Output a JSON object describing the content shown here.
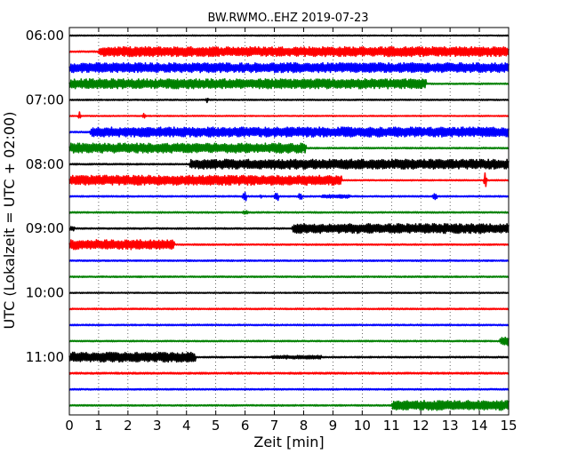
{
  "chart_data": {
    "type": "line",
    "title": "BW.RWMO..EHZ 2019-07-23",
    "xlabel": "Zeit  [min]",
    "ylabel": "UTC (Lokalzeit = UTC + 02:00)",
    "xlim": [
      0,
      15
    ],
    "x_ticks": [
      "0",
      "1",
      "2",
      "3",
      "4",
      "5",
      "6",
      "7",
      "8",
      "9",
      "10",
      "11",
      "12",
      "13",
      "14",
      "15"
    ],
    "y_ticks": [
      {
        "label": "06:00",
        "row": 0
      },
      {
        "label": "07:00",
        "row": 4
      },
      {
        "label": "08:00",
        "row": 8
      },
      {
        "label": "09:00",
        "row": 12
      },
      {
        "label": "10:00",
        "row": 16
      },
      {
        "label": "11:00",
        "row": 20
      }
    ],
    "grid": true,
    "colors": [
      "#000000",
      "#ff0000",
      "#0000ff",
      "#008000"
    ],
    "traces": [
      {
        "row": 0,
        "start_utc": "06:00",
        "color": "#000000",
        "base": 0.6,
        "segments": []
      },
      {
        "row": 1,
        "start_utc": "06:15",
        "color": "#ff0000",
        "base": 0.8,
        "segments": [
          [
            1.0,
            15,
            5.5
          ]
        ]
      },
      {
        "row": 2,
        "start_utc": "06:30",
        "color": "#0000ff",
        "base": 0.8,
        "segments": [
          [
            0,
            15,
            5.5
          ]
        ]
      },
      {
        "row": 3,
        "start_utc": "06:45",
        "color": "#008000",
        "base": 0.8,
        "segments": [
          [
            0,
            12.2,
            5.5
          ]
        ]
      },
      {
        "row": 4,
        "start_utc": "07:00",
        "color": "#000000",
        "base": 0.7,
        "segments": [],
        "spikes": [
          [
            4.7,
            4
          ]
        ]
      },
      {
        "row": 5,
        "start_utc": "07:15",
        "color": "#ff0000",
        "base": 0.6,
        "segments": [],
        "spikes": [
          [
            0.35,
            5
          ],
          [
            2.55,
            5
          ]
        ]
      },
      {
        "row": 6,
        "start_utc": "07:30",
        "color": "#0000ff",
        "base": 0.8,
        "segments": [
          [
            0.7,
            15,
            5.5
          ]
        ]
      },
      {
        "row": 7,
        "start_utc": "07:45",
        "color": "#008000",
        "base": 0.8,
        "segments": [
          [
            0,
            8.1,
            5.5
          ]
        ]
      },
      {
        "row": 8,
        "start_utc": "08:00",
        "color": "#000000",
        "base": 0.8,
        "segments": [
          [
            4.1,
            15,
            5.5
          ]
        ]
      },
      {
        "row": 9,
        "start_utc": "08:15",
        "color": "#ff0000",
        "base": 0.7,
        "segments": [
          [
            0,
            9.3,
            5.5
          ]
        ],
        "spikes": [
          [
            14.2,
            14
          ]
        ]
      },
      {
        "row": 10,
        "start_utc": "08:30",
        "color": "#0000ff",
        "base": 0.8,
        "segments": [
          [
            5.9,
            6.05,
            5
          ],
          [
            6.5,
            6.55,
            2.5
          ],
          [
            7.0,
            7.15,
            5
          ],
          [
            7.8,
            7.95,
            4
          ],
          [
            8.6,
            9.6,
            2
          ],
          [
            12.4,
            12.55,
            3.5
          ]
        ]
      },
      {
        "row": 11,
        "start_utc": "08:45",
        "color": "#008000",
        "base": 0.8,
        "segments": [
          [
            5.9,
            6.1,
            2
          ]
        ]
      },
      {
        "row": 12,
        "start_utc": "09:00",
        "color": "#000000",
        "base": 0.8,
        "segments": [
          [
            0,
            0.2,
            2.5
          ],
          [
            7.6,
            15,
            5.5
          ]
        ]
      },
      {
        "row": 13,
        "start_utc": "09:15",
        "color": "#ff0000",
        "base": 0.8,
        "segments": [
          [
            0,
            3.6,
            5.5
          ]
        ]
      },
      {
        "row": 14,
        "start_utc": "09:30",
        "color": "#0000ff",
        "base": 0.8,
        "segments": []
      },
      {
        "row": 15,
        "start_utc": "09:45",
        "color": "#008000",
        "base": 0.8,
        "segments": []
      },
      {
        "row": 16,
        "start_utc": "10:00",
        "color": "#000000",
        "base": 0.6,
        "segments": []
      },
      {
        "row": 17,
        "start_utc": "10:15",
        "color": "#ff0000",
        "base": 0.8,
        "segments": []
      },
      {
        "row": 18,
        "start_utc": "10:30",
        "color": "#0000ff",
        "base": 0.8,
        "segments": []
      },
      {
        "row": 19,
        "start_utc": "10:45",
        "color": "#008000",
        "base": 0.8,
        "segments": [
          [
            14.7,
            15,
            5.5
          ]
        ]
      },
      {
        "row": 20,
        "start_utc": "11:00",
        "color": "#000000",
        "base": 0.8,
        "segments": [
          [
            0,
            4.3,
            5.5
          ],
          [
            6.9,
            8.6,
            2
          ]
        ]
      },
      {
        "row": 21,
        "start_utc": "11:15",
        "color": "#ff0000",
        "base": 1.0,
        "segments": []
      },
      {
        "row": 22,
        "start_utc": "11:30",
        "color": "#0000ff",
        "base": 0.8,
        "segments": []
      },
      {
        "row": 23,
        "start_utc": "11:45",
        "color": "#008000",
        "base": 0.8,
        "segments": [
          [
            11.0,
            15,
            5.5
          ]
        ]
      }
    ]
  }
}
